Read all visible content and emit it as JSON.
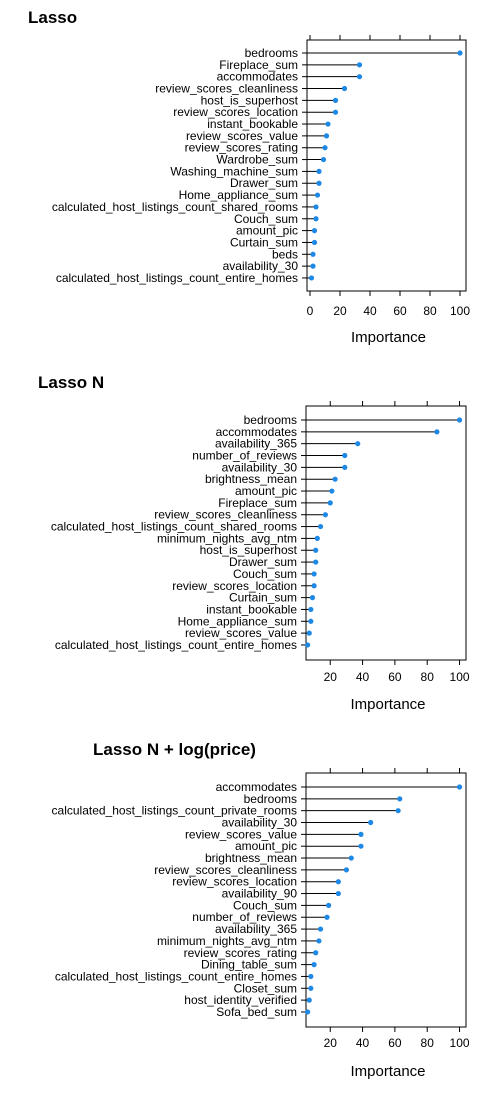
{
  "colors": {
    "point": "#1e88e5",
    "line": "#000000",
    "frame": "#000000"
  },
  "chart_data": [
    {
      "type": "dotplot",
      "title": "Lasso",
      "xlabel": "Importance",
      "xlim": [
        -2,
        104
      ],
      "xticks": [
        0,
        20,
        40,
        60,
        80,
        100
      ],
      "categories": [
        "bedrooms",
        "Fireplace_sum",
        "accommodates",
        "review_scores_cleanliness",
        "host_is_superhost",
        "review_scores_location",
        "instant_bookable",
        "review_scores_value",
        "review_scores_rating",
        "Wardrobe_sum",
        "Washing_machine_sum",
        "Drawer_sum",
        "Home_appliance_sum",
        "calculated_host_listings_count_shared_rooms",
        "Couch_sum",
        "amount_pic",
        "Curtain_sum",
        "beds",
        "availability_30",
        "calculated_host_listings_count_entire_homes"
      ],
      "values": [
        100,
        33,
        33,
        23,
        17,
        17,
        12,
        11,
        10,
        9,
        6,
        6,
        5,
        4,
        4,
        3,
        3,
        2,
        2,
        1
      ]
    },
    {
      "type": "dotplot",
      "title": "Lasso N",
      "xlabel": "Importance",
      "xlim": [
        5,
        104
      ],
      "xticks": [
        20,
        40,
        60,
        80,
        100
      ],
      "categories": [
        "bedrooms",
        "accommodates",
        "availability_365",
        "number_of_reviews",
        "availability_30",
        "brightness_mean",
        "amount_pic",
        "Fireplace_sum",
        "review_scores_cleanliness",
        "calculated_host_listings_count_shared_rooms",
        "minimum_nights_avg_ntm",
        "host_is_superhost",
        "Drawer_sum",
        "Couch_sum",
        "review_scores_location",
        "Curtain_sum",
        "instant_bookable",
        "Home_appliance_sum",
        "review_scores_value",
        "calculated_host_listings_count_entire_homes"
      ],
      "values": [
        100,
        86,
        37,
        29,
        29,
        23,
        21,
        20,
        17,
        14,
        12,
        11,
        11,
        10,
        10,
        9,
        8,
        8,
        7,
        6
      ]
    },
    {
      "type": "dotplot",
      "title": "Lasso N + log(price)",
      "xlabel": "Importance",
      "xlim": [
        5,
        104
      ],
      "xticks": [
        20,
        40,
        60,
        80,
        100
      ],
      "categories": [
        "accommodates",
        "bedrooms",
        "calculated_host_listings_count_private_rooms",
        "availability_30",
        "review_scores_value",
        "amount_pic",
        "brightness_mean",
        "review_scores_cleanliness",
        "review_scores_location",
        "availability_90",
        "Couch_sum",
        "number_of_reviews",
        "availability_365",
        "minimum_nights_avg_ntm",
        "review_scores_rating",
        "Dining_table_sum",
        "calculated_host_listings_count_entire_homes",
        "Closet_sum",
        "host_identity_verified",
        "Sofa_bed_sum"
      ],
      "values": [
        100,
        63,
        62,
        45,
        39,
        39,
        33,
        30,
        25,
        25,
        19,
        18,
        14,
        13,
        11,
        10,
        8,
        8,
        7,
        6
      ]
    }
  ]
}
